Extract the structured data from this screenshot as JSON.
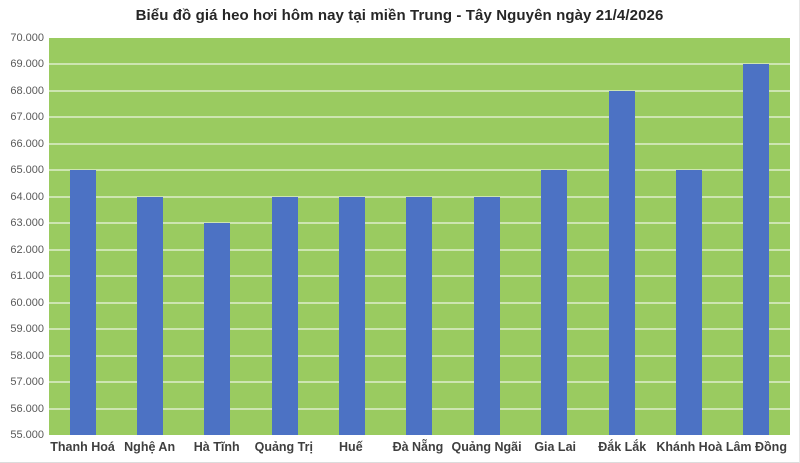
{
  "chart_data": {
    "type": "bar",
    "title": "Biểu đồ giá heo hơi hôm nay tại miền Trung - Tây Nguyên ngày 21/4/2026",
    "categories": [
      "Thanh Hoá",
      "Nghệ An",
      "Hà Tĩnh",
      "Quảng Trị",
      "Huế",
      "Đà Nẵng",
      "Quảng Ngãi",
      "Gia Lai",
      "Đắk Lắk",
      "Khánh Hoà",
      "Lâm Đồng"
    ],
    "values": [
      65000,
      64000,
      63000,
      64000,
      64000,
      64000,
      64000,
      65000,
      68000,
      65000,
      69000
    ],
    "xlabel": "",
    "ylabel": "",
    "ylim": [
      55000,
      70000
    ],
    "ytick_step": 1000,
    "ytick_labels": [
      "70.000",
      "69.000",
      "68.000",
      "67.000",
      "66.000",
      "65.000",
      "64.000",
      "63.000",
      "62.000",
      "61.000",
      "60.000",
      "59.000",
      "58.000",
      "57.000",
      "56.000",
      "55.000"
    ],
    "grid": true,
    "legend": false,
    "colors": {
      "bar": "#4C72C4",
      "plot_background": "#9ACB60",
      "gridline": "rgba(255,255,255,0.5)",
      "title_text": "#262626",
      "ytick_text": "#595959",
      "xtick_text": "#3F3F3F",
      "page_background": "#FFFFFF"
    }
  }
}
